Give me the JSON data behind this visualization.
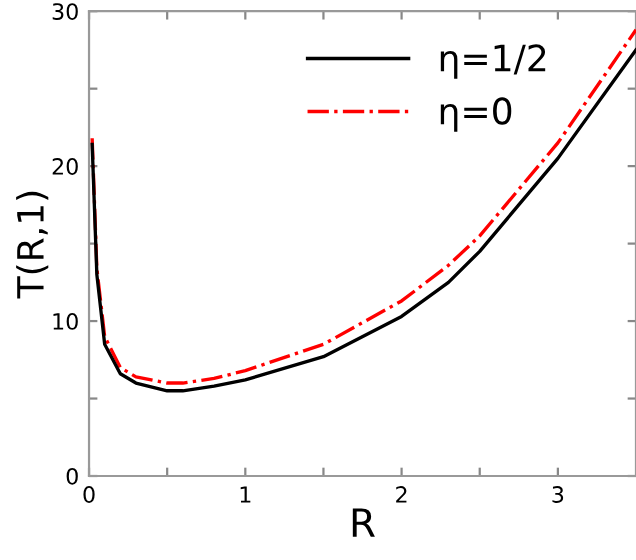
{
  "chart_data": {
    "type": "line",
    "xlabel": "R",
    "ylabel": "T(R,1)",
    "xlim": [
      0,
      3.5
    ],
    "ylim": [
      0,
      30
    ],
    "xticks": [
      0,
      {
        "value": 0.5,
        "label": null
      },
      1,
      {
        "value": 1.5,
        "label": null
      },
      2,
      {
        "value": 2.5,
        "label": null
      },
      3
    ],
    "yticks": [
      0,
      {
        "value": 5,
        "label": null
      },
      10,
      {
        "value": 15,
        "label": null
      },
      20,
      {
        "value": 25,
        "label": null
      },
      30
    ],
    "grid": false,
    "legend": "top right",
    "marker": "none",
    "series": [
      {
        "name": "η=1/2",
        "color": "#000000",
        "line_style": "solid",
        "x": [
          0.02,
          0.05,
          0.1,
          0.2,
          0.3,
          0.5,
          0.6,
          0.8,
          1.0,
          1.5,
          2.0,
          2.3,
          2.5,
          3.0,
          3.5
        ],
        "values": [
          21.4,
          13.0,
          8.5,
          6.6,
          6.0,
          5.5,
          5.5,
          5.8,
          6.2,
          7.7,
          10.3,
          12.5,
          14.5,
          20.5,
          27.5
        ]
      },
      {
        "name": "η=0",
        "color": "#ff0000",
        "line_style": "dashdot",
        "x": [
          0.02,
          0.05,
          0.1,
          0.2,
          0.3,
          0.5,
          0.6,
          0.8,
          1.0,
          1.5,
          2.0,
          2.3,
          2.5,
          3.0,
          3.5
        ],
        "values": [
          21.8,
          13.4,
          9.0,
          7.0,
          6.4,
          6.0,
          6.0,
          6.3,
          6.8,
          8.5,
          11.3,
          13.6,
          15.5,
          21.5,
          28.8
        ]
      }
    ]
  }
}
